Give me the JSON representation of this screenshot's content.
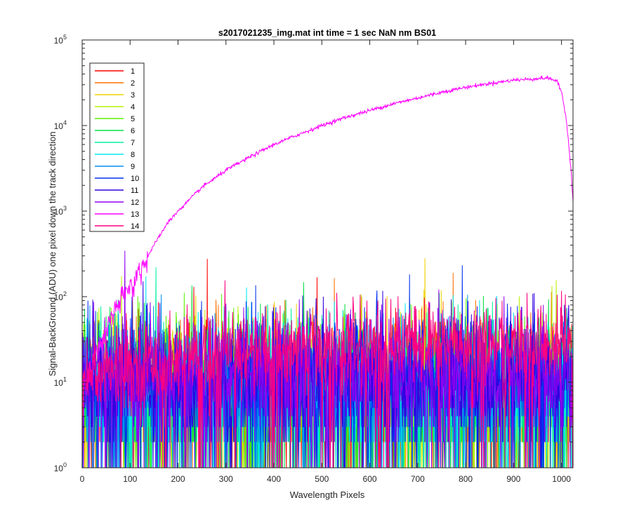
{
  "chart_data": {
    "type": "line",
    "title": "s2017021235_img.mat int time = 1 sec  NaN nm BS01",
    "xlabel": "Wavelength Pixels",
    "ylabel": "Signal-BackGround (ADU) one pixel down the track direction",
    "xlim": [
      0,
      1024
    ],
    "ylim": [
      1,
      100000
    ],
    "yscale": "log",
    "grid": false,
    "legend_position": "top-left",
    "x_ticks": [
      "0",
      "100",
      "200",
      "300",
      "400",
      "500",
      "600",
      "700",
      "800",
      "900",
      "1000"
    ],
    "y_ticks": [
      {
        "base": "10",
        "exp": "0"
      },
      {
        "base": "10",
        "exp": "1"
      },
      {
        "base": "10",
        "exp": "2"
      },
      {
        "base": "10",
        "exp": "3"
      },
      {
        "base": "10",
        "exp": "4"
      },
      {
        "base": "10",
        "exp": "5"
      }
    ],
    "series": [
      {
        "name": "1",
        "color": "#ff0000",
        "profile": "noise",
        "median": 8,
        "spread": 3.2
      },
      {
        "name": "2",
        "color": "#ff7000",
        "profile": "noise",
        "median": 8,
        "spread": 3.2
      },
      {
        "name": "3",
        "color": "#f2d000",
        "profile": "noise",
        "median": 8,
        "spread": 3.2
      },
      {
        "name": "4",
        "color": "#b8f000",
        "profile": "noise",
        "median": 8,
        "spread": 3.2
      },
      {
        "name": "5",
        "color": "#5cf000",
        "profile": "noise",
        "median": 8,
        "spread": 3.2
      },
      {
        "name": "6",
        "color": "#00e040",
        "profile": "noise",
        "median": 8,
        "spread": 3.2
      },
      {
        "name": "7",
        "color": "#00f0a0",
        "profile": "noise",
        "median": 8,
        "spread": 3.2
      },
      {
        "name": "8",
        "color": "#00e8f0",
        "profile": "noise",
        "median": 8,
        "spread": 3.2
      },
      {
        "name": "9",
        "color": "#0090f0",
        "profile": "noise",
        "median": 9,
        "spread": 3.0
      },
      {
        "name": "10",
        "color": "#0030f0",
        "profile": "noise",
        "median": 10,
        "spread": 3.0
      },
      {
        "name": "11",
        "color": "#3000e0",
        "profile": "noise",
        "median": 11,
        "spread": 2.8
      },
      {
        "name": "12",
        "color": "#9000f0",
        "profile": "noise",
        "median": 13,
        "spread": 2.6
      },
      {
        "name": "13",
        "color": "#ff00ff",
        "profile": "signal",
        "x": [
          0,
          20,
          40,
          60,
          80,
          100,
          120,
          140,
          160,
          180,
          200,
          250,
          300,
          350,
          400,
          450,
          500,
          550,
          600,
          650,
          700,
          750,
          800,
          850,
          900,
          940,
          965,
          980,
          990,
          1000,
          1010,
          1020,
          1024
        ],
        "values": [
          8,
          15,
          30,
          55,
          90,
          130,
          200,
          320,
          500,
          750,
          1000,
          1900,
          3000,
          4300,
          6000,
          7800,
          10000,
          12500,
          15000,
          18000,
          21000,
          24500,
          28000,
          31000,
          34000,
          35000,
          36000,
          35000,
          33000,
          25000,
          12000,
          3000,
          1300
        ]
      },
      {
        "name": "14",
        "color": "#ff0080",
        "profile": "noise_rising",
        "median": 12,
        "median_end": 28,
        "spread": 2.0
      }
    ]
  }
}
